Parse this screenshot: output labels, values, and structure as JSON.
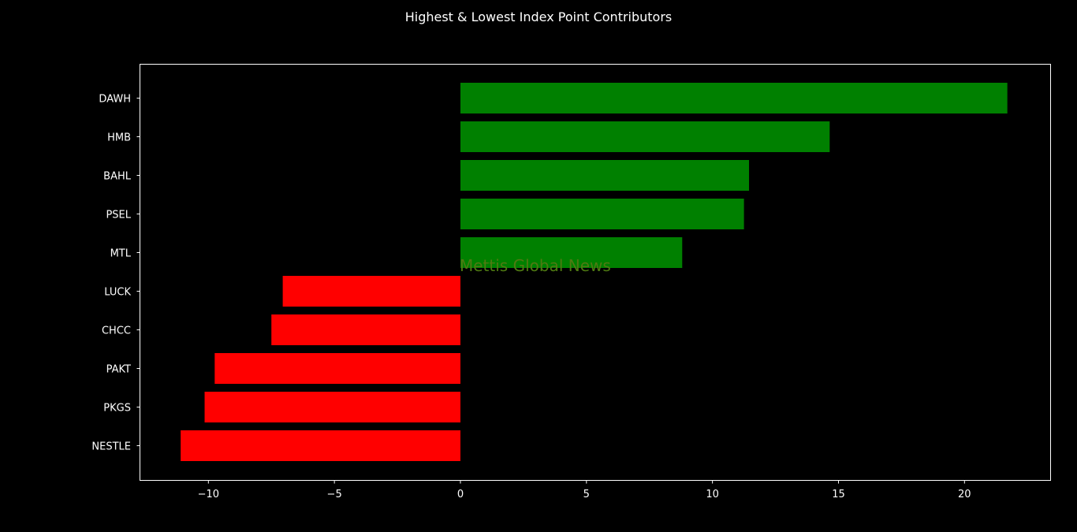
{
  "chart_data": {
    "type": "bar",
    "orientation": "horizontal",
    "title": "Highest & Lowest Index Point Contributors",
    "xlabel": "",
    "ylabel": "",
    "xlim": [
      -12.7,
      23.4
    ],
    "xticks": [
      -10,
      -5,
      0,
      5,
      10,
      15,
      20
    ],
    "xtick_labels": [
      "−10",
      "−5",
      "0",
      "5",
      "10",
      "15",
      "20"
    ],
    "categories": [
      "DAWH",
      "HMB",
      "BAHL",
      "PSEL",
      "MTL",
      "LUCK",
      "CHCC",
      "PAKT",
      "PKGS",
      "NESTLE"
    ],
    "values": [
      21.7,
      14.65,
      11.45,
      11.25,
      8.8,
      -7.05,
      -7.5,
      -9.75,
      -10.15,
      -11.1
    ],
    "positive_color": "#008000",
    "negative_color": "#ff0000",
    "grid": false,
    "legend": "none"
  },
  "watermark": {
    "text": "Mettis Global News",
    "color": "#4f7a12"
  },
  "colors": {
    "background": "#000000",
    "axes": "#ffffff",
    "text": "#ffffff"
  }
}
